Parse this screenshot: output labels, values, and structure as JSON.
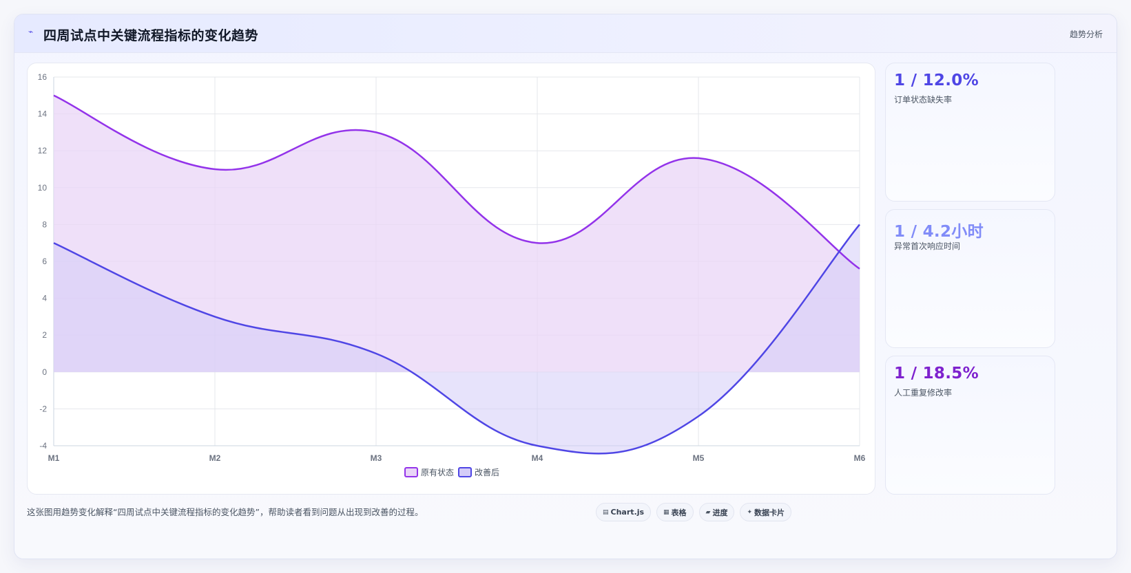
{
  "header": {
    "title": "四周试点中关键流程指标的变化趋势",
    "tag": "趋势分析"
  },
  "stats": [
    {
      "value": "1 / 12.0%",
      "label": "订单状态缺失率",
      "color": "#4f46e5"
    },
    {
      "value": "1 / 4.2小时",
      "label": "异常首次响应时间",
      "color": "#818cf8"
    },
    {
      "value": "1 / 18.5%",
      "label": "人工重复修改率",
      "color": "#7e22ce"
    }
  ],
  "footer": {
    "description": "这张图用趋势变化解释“四周试点中关键流程指标的变化趋势”，帮助读者看到问题从出现到改善的过程。",
    "pills": [
      {
        "icon": "chart-icon",
        "glyph": "▤",
        "label": "Chart.js"
      },
      {
        "icon": "table-icon",
        "glyph": "▦",
        "label": "表格"
      },
      {
        "icon": "progress-icon",
        "glyph": "▰",
        "label": "进度"
      },
      {
        "icon": "sparkle-icon",
        "glyph": "✦",
        "label": "数据卡片"
      }
    ]
  },
  "chart_data": {
    "type": "area",
    "categories": [
      "M1",
      "M2",
      "M3",
      "M4",
      "M5",
      "M6"
    ],
    "series": [
      {
        "name": "原有状态",
        "values": [
          15,
          11,
          13,
          7,
          11.6,
          5.6
        ],
        "color": "#9333ea",
        "fill": "#e9d5f7"
      },
      {
        "name": "改善后",
        "values": [
          7,
          3,
          1,
          -4,
          -2.4,
          8
        ],
        "color": "#4f46e5",
        "fill": "#d4ccf8"
      }
    ],
    "ylim": [
      -4,
      16
    ],
    "yticks": [
      -4,
      -2,
      0,
      2,
      4,
      6,
      8,
      10,
      12,
      14,
      16
    ],
    "grid": true,
    "legend": "bottom"
  }
}
